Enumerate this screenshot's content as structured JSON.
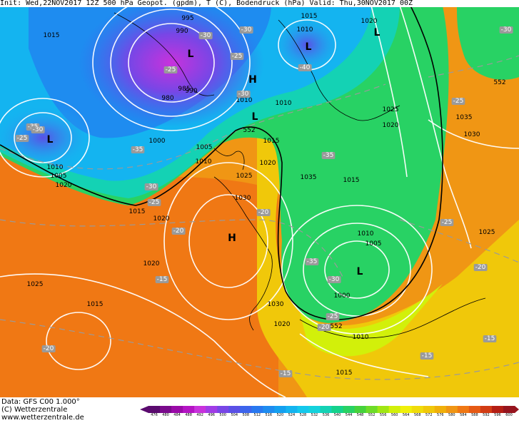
{
  "header": {
    "init": "Init: Wed,22NOV2017 12Z",
    "fields": "500 hPa Geopot. (gpdm), T (C), Bodendruck (hPa)",
    "valid": "Valid: Thu,30NOV2017 00Z"
  },
  "footer": {
    "data": "Data: GFS C00 1.000°",
    "copyright": "(C) Wetterzentrale",
    "website": "www.wetterzentrale.de"
  },
  "legend": {
    "ticks": [
      "476",
      "480",
      "484",
      "488",
      "492",
      "496",
      "500",
      "504",
      "508",
      "512",
      "516",
      "520",
      "524",
      "528",
      "532",
      "536",
      "540",
      "544",
      "548",
      "552",
      "556",
      "560",
      "564",
      "568",
      "572",
      "576",
      "580",
      "584",
      "588",
      "592",
      "596",
      "600"
    ],
    "colors": [
      "#5a0a6e",
      "#7a0a8c",
      "#9a0aa8",
      "#b414c4",
      "#c832dc",
      "#a03ce6",
      "#7846e6",
      "#5a50e6",
      "#3c64ec",
      "#2878f0",
      "#1e8cf0",
      "#14a0f0",
      "#14b4f0",
      "#14c8ec",
      "#14d2dc",
      "#14d2b4",
      "#14d28c",
      "#28d264",
      "#46d23c",
      "#6edc28",
      "#a0e614",
      "#d2f00a",
      "#f0f00a",
      "#f0dc0a",
      "#f0c80a",
      "#f0b00a",
      "#f09614",
      "#f07814",
      "#e65a14",
      "#d23c14",
      "#b41e14",
      "#96141e"
    ]
  },
  "labels": {
    "pressure": [
      "995",
      "990",
      "985",
      "980",
      "990",
      "1015",
      "1010",
      "1020",
      "1015",
      "1010",
      "1010",
      "1025",
      "1020",
      "1035",
      "1030",
      "1000",
      "1005",
      "1010",
      "1015",
      "1010",
      "1005",
      "1020",
      "1025",
      "1030",
      "1035",
      "1015",
      "1020",
      "1005",
      "1000",
      "1010",
      "1015",
      "1020",
      "1025",
      "1020",
      "1010",
      "1015",
      "1025",
      "1020",
      "1030",
      "1015"
    ],
    "temperature": [
      "-35",
      "-30",
      "-30",
      "-40",
      "-25",
      "-30",
      "-25",
      "-35",
      "-35",
      "-30",
      "-25",
      "-20",
      "-20",
      "-15",
      "-25",
      "-20",
      "-35",
      "-30",
      "-25",
      "-20",
      "-15",
      "-15",
      "-20",
      "-15",
      "-30",
      "-25",
      "-30",
      "-25"
    ],
    "geopotential": [
      "552",
      "552",
      "552"
    ],
    "pressure_systems": [
      "L",
      "L",
      "H",
      "L",
      "L",
      "L",
      "H",
      "L"
    ]
  }
}
